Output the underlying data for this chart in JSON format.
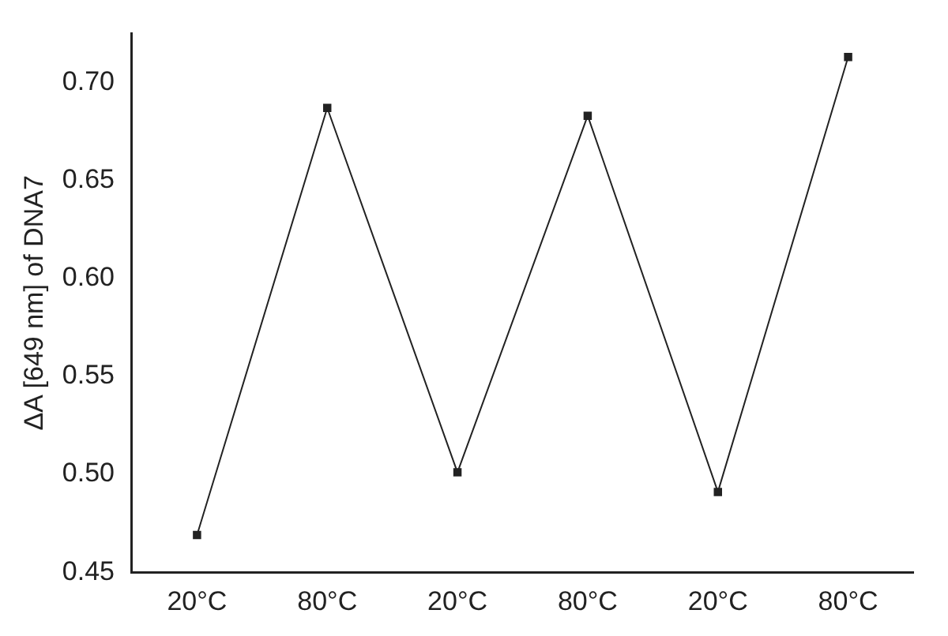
{
  "chart_data": {
    "type": "line",
    "ylabel": "ΔA [649 nm] of DNA7",
    "categories": [
      "20°C",
      "80°C",
      "20°C",
      "80°C",
      "20°C",
      "80°C"
    ],
    "series": [
      {
        "color": "#222222",
        "values": [
          0.469,
          0.687,
          0.501,
          0.683,
          0.491,
          0.713
        ]
      }
    ],
    "ylim": [
      0.45,
      0.725
    ],
    "yticks": [
      0.45,
      {
        "value": 0.5,
        "label": "0.50"
      },
      0.55,
      {
        "value": 0.6,
        "label": "0.60"
      },
      0.65,
      {
        "value": 0.7,
        "label": "0.70"
      }
    ],
    "marker": "square",
    "line_style": "solid",
    "grid": false,
    "legend": false
  }
}
